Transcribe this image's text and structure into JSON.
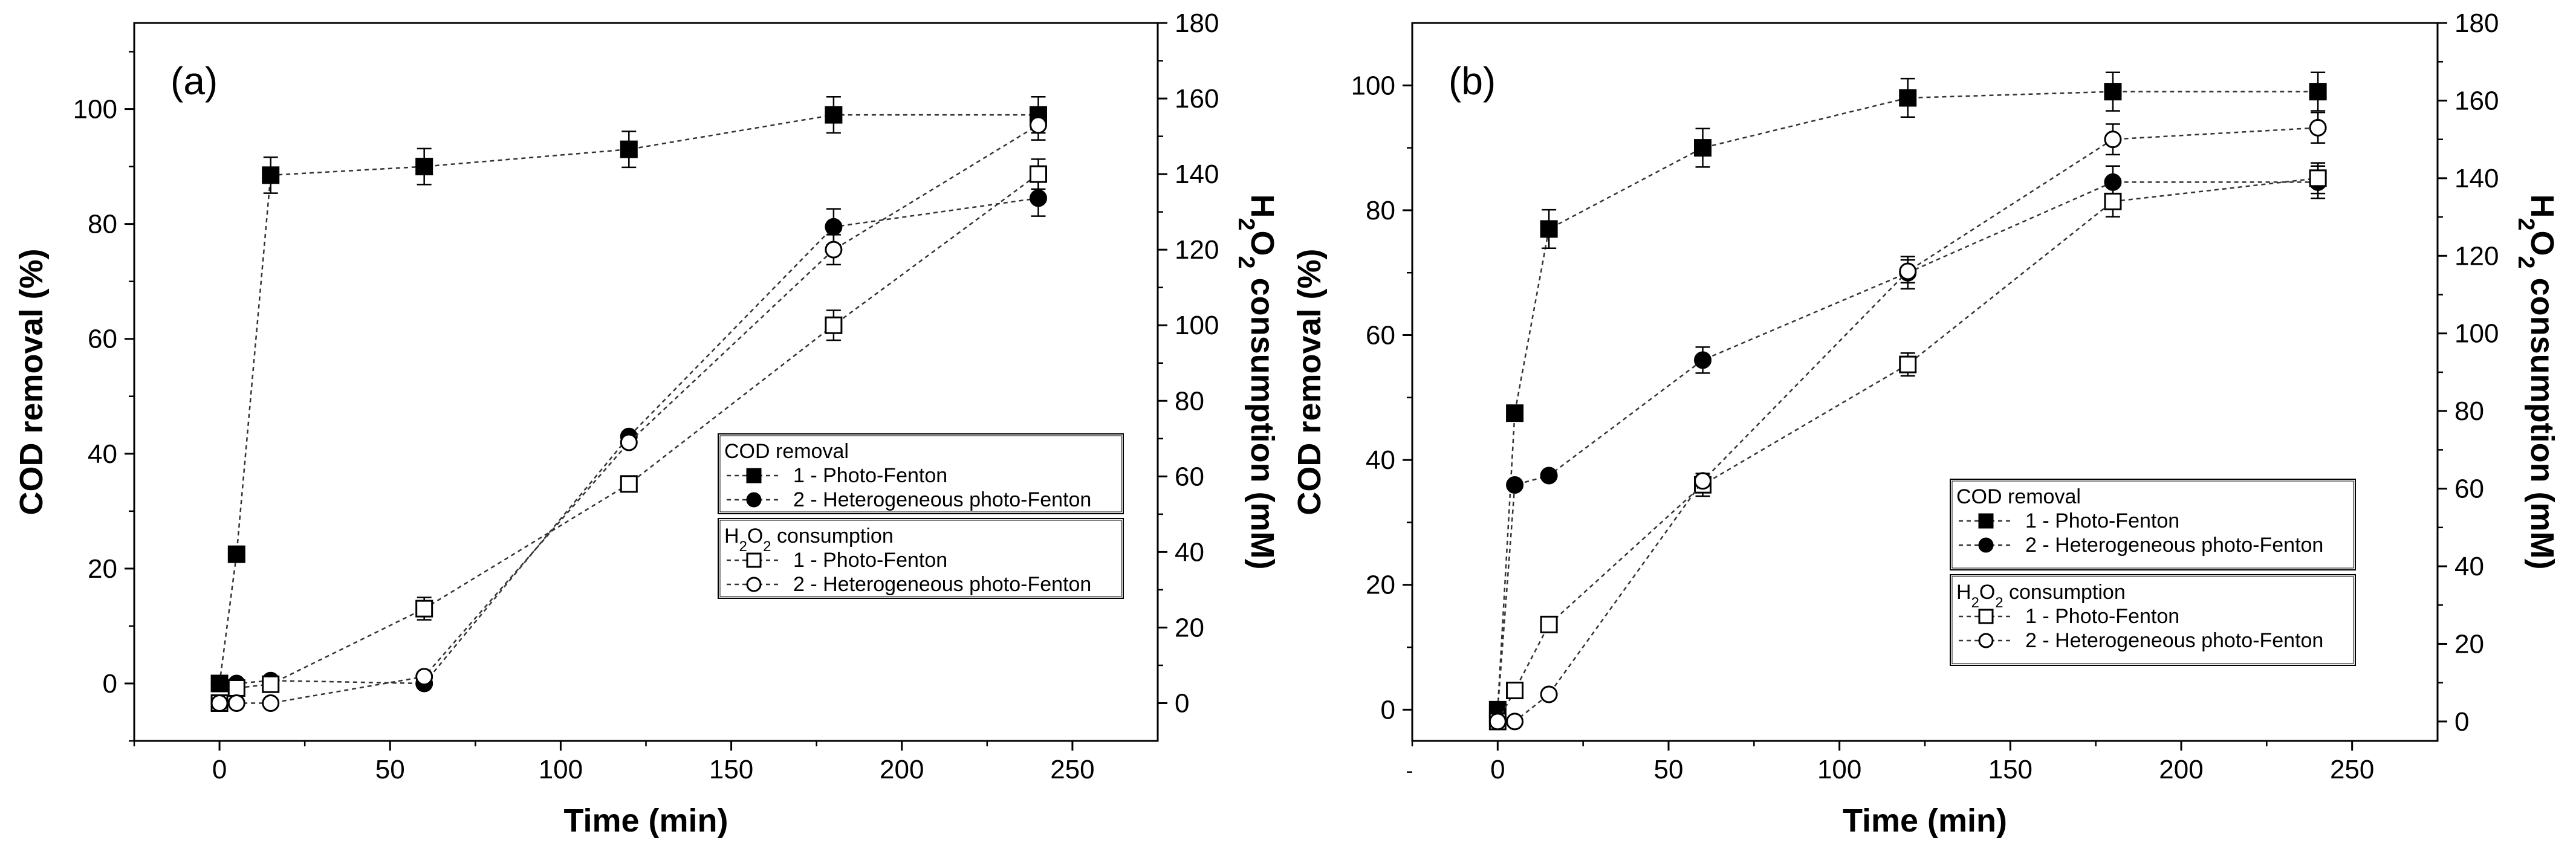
{
  "chart_data": [
    {
      "panel": "(a)",
      "type": "line",
      "xlabel": "Time (min)",
      "ylabel": "COD removal (%)",
      "y2label_parts": [
        "H",
        "2",
        "O",
        "2",
        " consumption (mM)"
      ],
      "xlim": [
        -25,
        275
      ],
      "ylim": [
        -10,
        115
      ],
      "y2lim": [
        -10,
        180
      ],
      "xticks": [
        "0",
        "50",
        "100",
        "150",
        "200",
        "250"
      ],
      "yticks": [
        "0",
        "20",
        "40",
        "60",
        "80",
        "100"
      ],
      "y2ticks": [
        "0",
        "20",
        "40",
        "60",
        "80",
        "100",
        "120",
        "140",
        "160",
        "180"
      ],
      "legend": {
        "group1_title": "COD removal",
        "group2_title_parts": [
          "H",
          "2",
          "O",
          "2",
          " consumption"
        ],
        "entries": [
          "1 - Photo-Fenton",
          "2 - Heterogeneous photo-Fenton",
          "1 - Photo-Fenton",
          "2 - Heterogeneous photo-Fenton"
        ]
      },
      "series": [
        {
          "name": "1 - Photo-Fenton",
          "group": "COD removal",
          "axis": "left",
          "marker": "square-filled",
          "x": [
            0,
            5,
            15,
            60,
            120,
            180,
            240
          ],
          "y": [
            0,
            22.5,
            88.5,
            90,
            93,
            99,
            99
          ],
          "err": [
            0,
            0,
            2.5,
            2.5,
            2.5,
            2.5,
            2.5
          ]
        },
        {
          "name": "2 - Heterogeneous photo-Fenton",
          "group": "COD removal",
          "axis": "left",
          "marker": "circle-filled",
          "x": [
            0,
            5,
            15,
            60,
            120,
            180,
            240
          ],
          "y": [
            0,
            0,
            0.5,
            0,
            43,
            79.5,
            84.5
          ],
          "err": [
            0,
            0,
            0,
            0,
            0,
            2.5,
            2.5
          ]
        },
        {
          "name": "1 - Photo-Fenton",
          "group": "H2O2 consumption",
          "axis": "right",
          "marker": "square-open",
          "x": [
            0,
            5,
            15,
            60,
            120,
            180,
            240
          ],
          "y": [
            0,
            4,
            5,
            25,
            58,
            100,
            140
          ],
          "err": [
            0,
            0,
            0,
            2,
            0,
            3,
            3
          ]
        },
        {
          "name": "2 - Heterogeneous photo-Fenton",
          "group": "H2O2 consumption",
          "axis": "right",
          "marker": "circle-open",
          "x": [
            0,
            5,
            15,
            60,
            120,
            180,
            240
          ],
          "y": [
            0,
            0,
            0,
            7,
            69,
            120,
            153
          ],
          "err": [
            0,
            0,
            0,
            0,
            0,
            3,
            3
          ]
        }
      ]
    },
    {
      "panel": "(b)",
      "type": "line",
      "xlabel": "Time (min)",
      "ylabel": "COD removal (%)",
      "y2label_parts": [
        "H",
        "2",
        "O",
        "2",
        " consumption (mM)"
      ],
      "xlim": [
        -25,
        275
      ],
      "ylim": [
        -5,
        110
      ],
      "y2lim": [
        -5,
        180
      ],
      "xticks": [
        "0",
        "50",
        "100",
        "150",
        "200",
        "250"
      ],
      "yticks": [
        "0",
        "20",
        "40",
        "60",
        "80",
        "100"
      ],
      "y2ticks": [
        "0",
        "20",
        "40",
        "60",
        "80",
        "100",
        "120",
        "140",
        "160",
        "180"
      ],
      "legend": {
        "group1_title": "COD removal",
        "group2_title_parts": [
          "H",
          "2",
          "O",
          "2",
          " consumption"
        ],
        "entries": [
          "1 - Photo-Fenton",
          "2 - Heterogeneous photo-Fenton",
          "1 - Photo-Fenton",
          "2 - Heterogeneous photo-Fenton"
        ]
      },
      "series": [
        {
          "name": "1 - Photo-Fenton",
          "group": "COD removal",
          "axis": "left",
          "marker": "square-filled",
          "x": [
            0,
            5,
            15,
            60,
            120,
            180,
            240
          ],
          "y": [
            0,
            47.5,
            77,
            90,
            98,
            99,
            99
          ],
          "err": [
            0,
            0,
            2.5,
            2.5,
            2.5,
            2.5,
            2.5
          ]
        },
        {
          "name": "2 - Heterogeneous photo-Fenton",
          "group": "COD removal",
          "axis": "left",
          "marker": "circle-filled",
          "x": [
            0,
            5,
            15,
            60,
            120,
            180,
            240
          ],
          "y": [
            0,
            36,
            37.5,
            56,
            70,
            84.5,
            84.5
          ],
          "err": [
            0,
            0,
            0,
            1.5,
            2,
            2,
            2
          ]
        },
        {
          "name": "1 - Photo-Fenton",
          "group": "H2O2 consumption",
          "axis": "right",
          "marker": "square-open",
          "x": [
            0,
            5,
            15,
            60,
            120,
            180,
            240
          ],
          "y": [
            0,
            8,
            25,
            61,
            92,
            134,
            140
          ],
          "err": [
            0,
            0,
            0,
            2,
            2,
            3,
            3
          ]
        },
        {
          "name": "2 - Heterogeneous photo-Fenton",
          "group": "H2O2 consumption",
          "axis": "right",
          "marker": "circle-open",
          "x": [
            0,
            5,
            15,
            60,
            120,
            180,
            240
          ],
          "y": [
            0,
            0,
            7,
            62,
            116,
            150,
            153
          ],
          "err": [
            0,
            0,
            0,
            0,
            2,
            3,
            3
          ]
        }
      ]
    }
  ]
}
